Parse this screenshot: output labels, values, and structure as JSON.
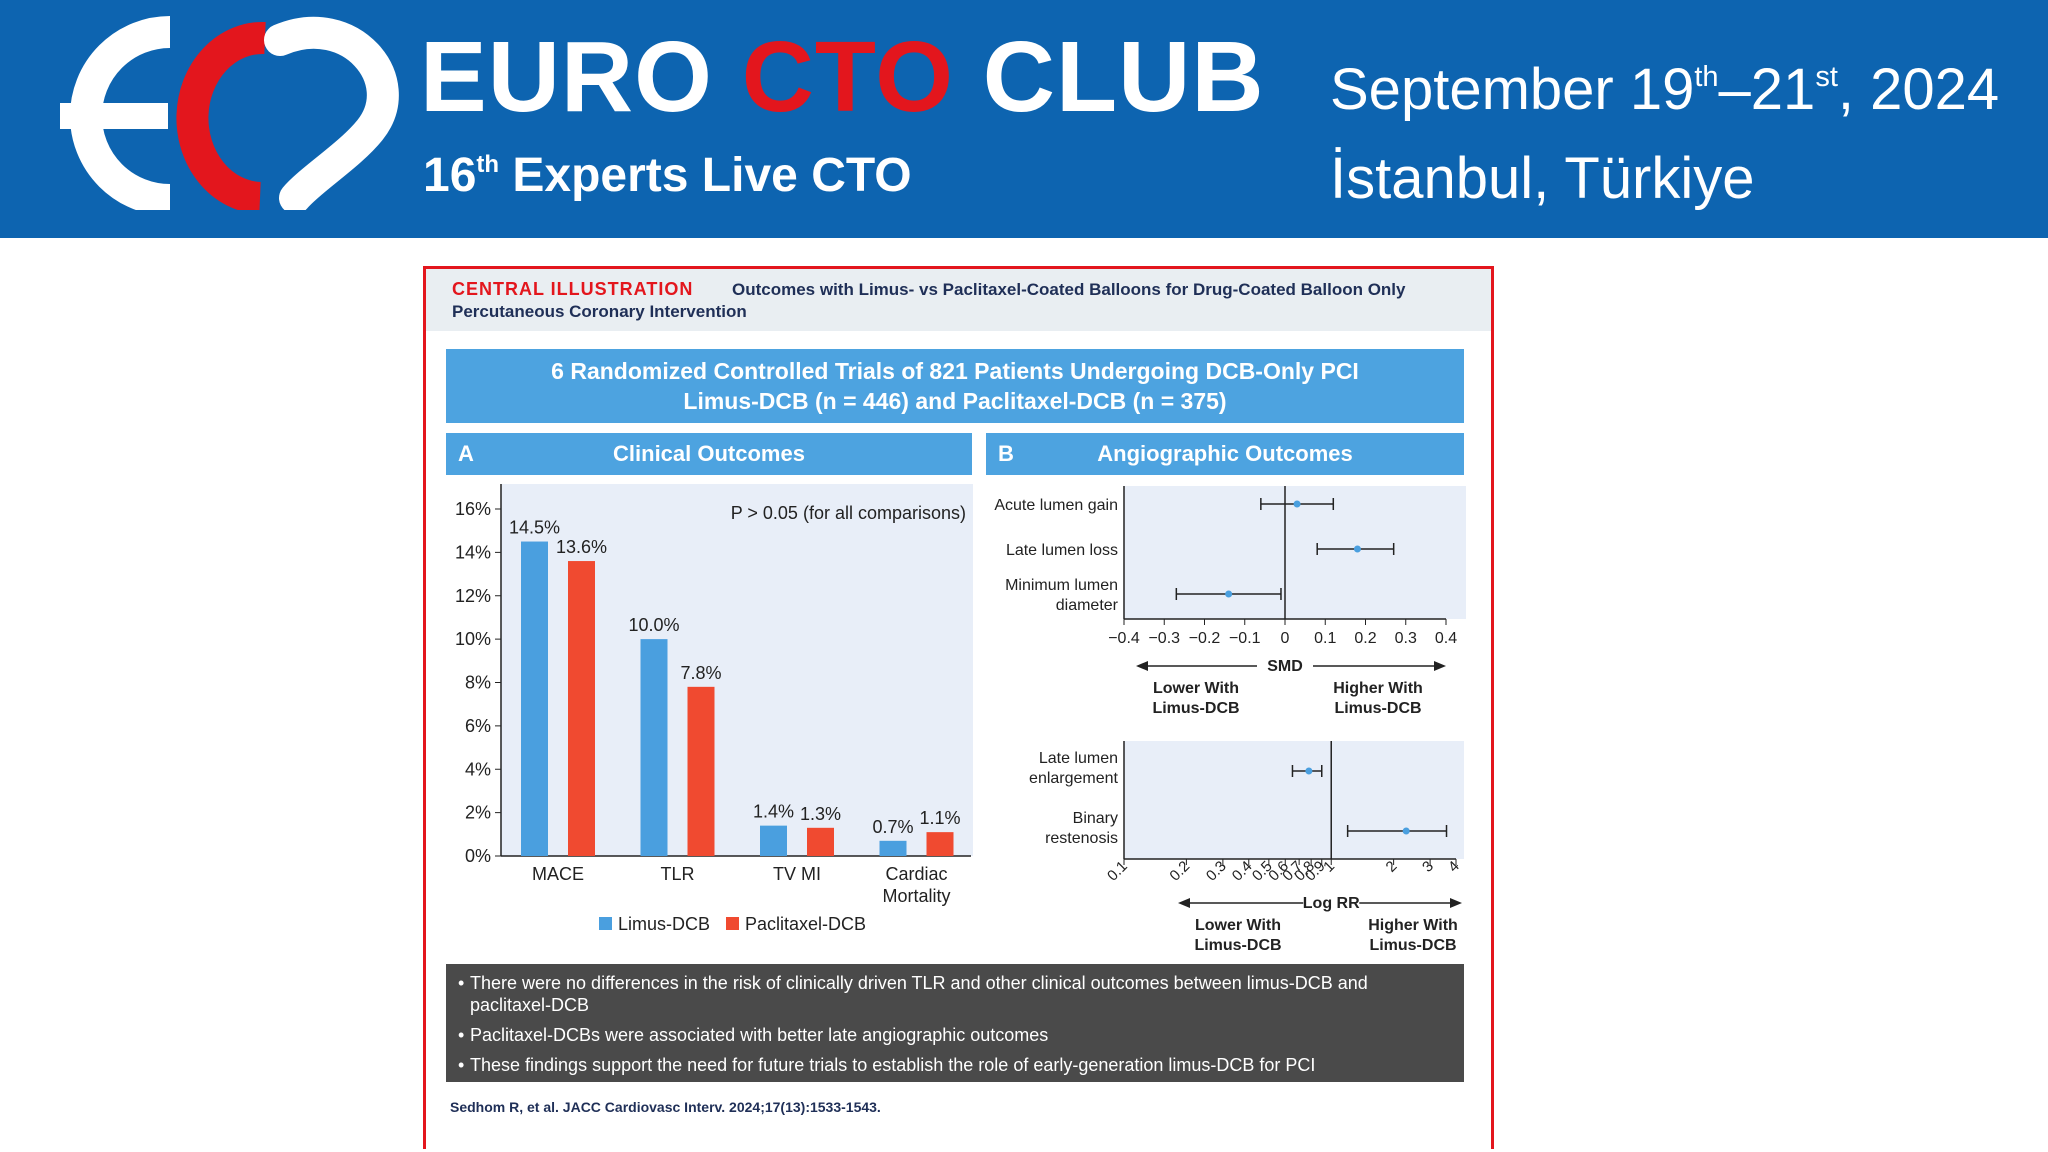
{
  "header": {
    "brand_part1": "EURO",
    "brand_part2": "CTO",
    "brand_part3": "CLUB",
    "subtitle_num": "16",
    "subtitle_sup": "th",
    "subtitle_rest": " Experts Live CTO",
    "date_a": "September 19",
    "date_a_sup": "th",
    "date_b": "–21",
    "date_b_sup": "st",
    "date_c": ", 2024",
    "location": "İstanbul, Türkiye",
    "colors": {
      "banner": "#0d64b0",
      "accent_red": "#e3161d"
    }
  },
  "figure": {
    "label": "CENTRAL ILLUSTRATION",
    "title": "Outcomes with Limus- vs Paclitaxel-Coated Balloons for Drug-Coated Balloon Only Percutaneous Coronary Intervention",
    "summary_line1": "6 Randomized Controlled Trials of 821 Patients Undergoing DCB-Only PCI",
    "summary_line2": "Limus-DCB (n = 446) and Paclitaxel-DCB (n = 375)",
    "panel_a": {
      "letter": "A",
      "title": "Clinical Outcomes"
    },
    "panel_b": {
      "letter": "B",
      "title": "Angiographic Outcomes"
    },
    "notes": [
      "There were no differences in the risk of clinically driven TLR and other clinical outcomes between limus-DCB and paclitaxel-DCB",
      "Paclitaxel-DCBs were associated with better late angiographic outcomes",
      "These findings support the need for future trials to establish the role of early-generation limus-DCB for PCI"
    ],
    "citation": "Sedhom R, et al. JACC Cardiovasc Interv. 2024;17(13):1533-1543.",
    "colors": {
      "limus": "#4a9fdf",
      "paclitaxel": "#f04a30",
      "panel_bg": "#e8eef8",
      "header_blue": "#4da3e0"
    }
  },
  "chart_data": [
    {
      "type": "bar",
      "panel": "A",
      "annotation": "P > 0.05 (for all comparisons)",
      "categories": [
        "MACE",
        "TLR",
        "TV MI",
        "Cardiac Mortality"
      ],
      "series": [
        {
          "name": "Limus-DCB",
          "values": [
            14.5,
            10.0,
            1.4,
            0.7
          ],
          "labels": [
            "14.5%",
            "10.0%",
            "1.4%",
            "0.7%"
          ]
        },
        {
          "name": "Paclitaxel-DCB",
          "values": [
            13.6,
            7.8,
            1.3,
            1.1
          ],
          "labels": [
            "13.6%",
            "7.8%",
            "1.3%",
            "1.1%"
          ]
        }
      ],
      "ylim": [
        0,
        16
      ],
      "yticks": [
        "0%",
        "2%",
        "4%",
        "6%",
        "8%",
        "10%",
        "12%",
        "14%",
        "16%"
      ],
      "legend": "bottom"
    },
    {
      "type": "scatter",
      "panel": "B",
      "subtype": "forest",
      "xlabel": "SMD",
      "xlim": [
        -0.4,
        0.4
      ],
      "xticks": [
        "−0.4",
        "−0.3",
        "−0.2",
        "−0.1",
        "0",
        "0.1",
        "0.2",
        "0.3",
        "0.4"
      ],
      "reference": 0,
      "left_label": "Lower With Limus-DCB",
      "right_label": "Higher With Limus-DCB",
      "rows": [
        {
          "label": "Acute lumen gain",
          "estimate": 0.03,
          "lower": -0.06,
          "upper": 0.12
        },
        {
          "label": "Late lumen loss",
          "estimate": 0.18,
          "lower": 0.08,
          "upper": 0.27
        },
        {
          "label": "Minimum lumen diameter",
          "estimate": -0.14,
          "lower": -0.27,
          "upper": -0.01
        }
      ]
    },
    {
      "type": "scatter",
      "panel": "B",
      "subtype": "forest",
      "xlabel": "Log RR",
      "xscale": "log",
      "xlim": [
        0.1,
        4
      ],
      "xticks": [
        "0.1",
        "0.2",
        "0.3",
        "0.4",
        "0.5",
        "0.6",
        "0.7",
        "0.8",
        "0.9",
        "1",
        "2",
        "3",
        "4"
      ],
      "reference": 1,
      "left_label": "Lower With Limus-DCB",
      "right_label": "Higher With Limus-DCB",
      "rows": [
        {
          "label": "Late lumen enlargement",
          "estimate": 0.78,
          "lower": 0.65,
          "upper": 0.9
        },
        {
          "label": "Binary restenosis",
          "estimate": 2.3,
          "lower": 1.2,
          "upper": 3.6
        }
      ]
    }
  ]
}
